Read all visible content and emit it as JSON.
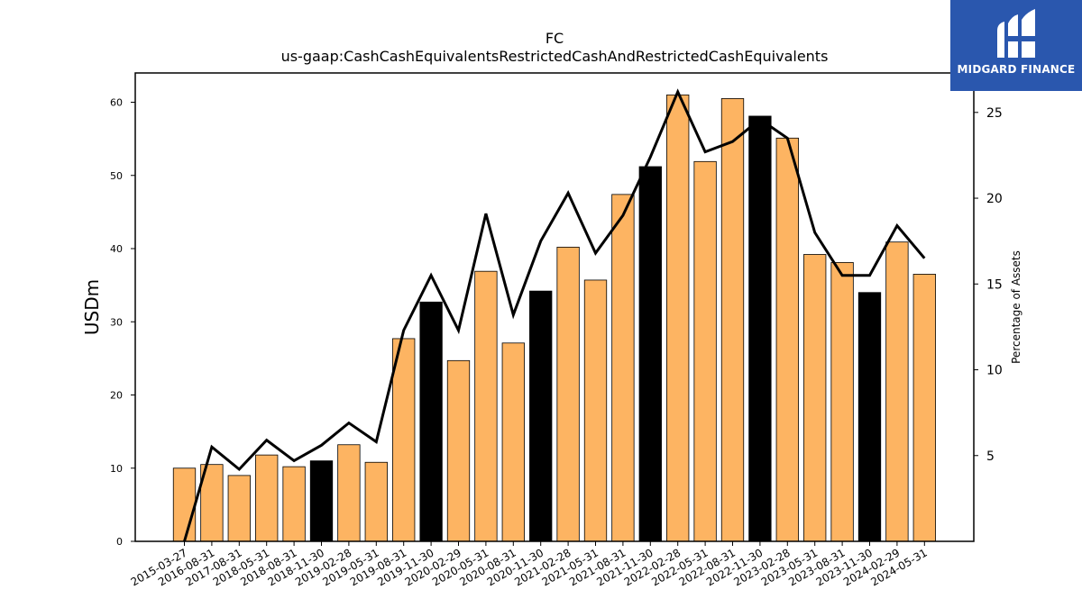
{
  "chart_data": {
    "type": "bar",
    "title": "FC",
    "subtitle": "us-gaap:CashCashEquivalentsRestrictedCashAndRestrictedCashEquivalents",
    "xlabel": "",
    "ylabel": "USDm",
    "y2label": "Percentage of Assets",
    "ylim": [
      0,
      64
    ],
    "y2lim": [
      0,
      27.3
    ],
    "yticks": [
      0,
      10,
      20,
      30,
      40,
      50,
      60
    ],
    "y2ticks": [
      5,
      10,
      15,
      20,
      25
    ],
    "categories": [
      "2015-03-27",
      "2016-08-31",
      "2017-08-31",
      "2018-05-31",
      "2018-08-31",
      "2018-11-30",
      "2019-02-28",
      "2019-05-31",
      "2019-08-31",
      "2019-11-30",
      "2020-02-29",
      "2020-05-31",
      "2020-08-31",
      "2020-11-30",
      "2021-02-28",
      "2021-05-31",
      "2021-08-31",
      "2021-11-30",
      "2022-02-28",
      "2022-05-31",
      "2022-08-31",
      "2022-11-30",
      "2023-02-28",
      "2023-05-31",
      "2023-08-31",
      "2023-11-30",
      "2024-02-29",
      "2024-05-31"
    ],
    "series": [
      {
        "type": "bar",
        "values": [
          10.0,
          10.5,
          9.0,
          11.8,
          10.2,
          11.0,
          13.2,
          10.8,
          27.7,
          32.7,
          24.7,
          36.9,
          27.1,
          34.2,
          40.2,
          35.7,
          47.4,
          51.2,
          61.0,
          51.9,
          60.5,
          58.1,
          55.1,
          39.2,
          38.1,
          34.0,
          40.9,
          36.5
        ],
        "highlight": [
          false,
          false,
          false,
          false,
          false,
          true,
          false,
          false,
          false,
          true,
          false,
          false,
          false,
          true,
          false,
          false,
          false,
          true,
          false,
          false,
          false,
          true,
          false,
          false,
          false,
          true,
          false,
          false
        ]
      },
      {
        "type": "line",
        "axis": "right",
        "values": [
          0.0,
          5.5,
          4.2,
          5.9,
          4.7,
          5.6,
          6.9,
          5.8,
          12.3,
          15.5,
          12.3,
          19.1,
          13.2,
          17.5,
          20.3,
          16.8,
          19.0,
          22.4,
          26.2,
          22.7,
          23.3,
          24.6,
          23.5,
          18.0,
          15.5,
          15.5,
          18.4,
          16.5
        ]
      }
    ],
    "colors": {
      "bar": "#fdb462",
      "bar_highlight": "#000000",
      "line": "#000000"
    }
  },
  "logo": {
    "text": "MIDGARD FINANCE",
    "color": "#2a57ae"
  }
}
